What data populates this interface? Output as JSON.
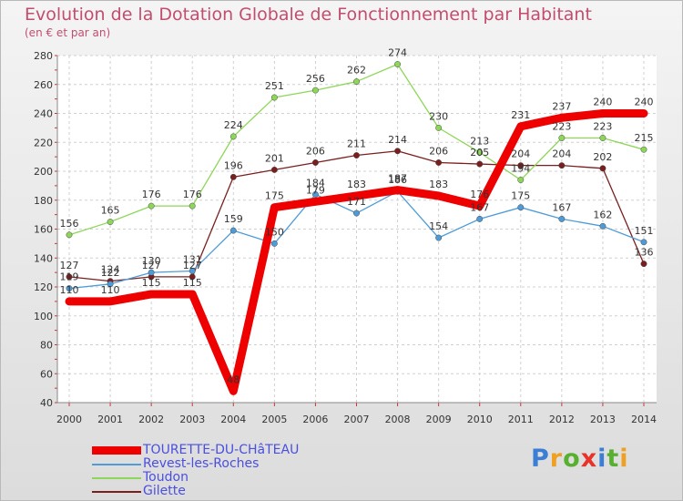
{
  "title": "Evolution de la Dotation Globale de Fonctionnement par Habitant",
  "subtitle": "(en € et par an)",
  "logo": {
    "letters": [
      "P",
      "r",
      "o",
      "x",
      "i",
      "t",
      "i"
    ],
    "colors": [
      "#3a7fd5",
      "#f0a020",
      "#58b030",
      "#e8322a",
      "#3a7fd5",
      "#58b030",
      "#f0a020"
    ]
  },
  "chart_data": {
    "type": "line",
    "categories": [
      "2000",
      "2001",
      "2002",
      "2003",
      "2004",
      "2005",
      "2006",
      "2007",
      "2008",
      "2009",
      "2010",
      "2011",
      "2012",
      "2013",
      "2014"
    ],
    "ylim": [
      40,
      280
    ],
    "yticks": [
      "40",
      "60",
      "80",
      "100",
      "120",
      "140",
      "160",
      "180",
      "200",
      "220",
      "240",
      "260",
      "280"
    ],
    "grid": true,
    "series": [
      {
        "name": "Gilette",
        "color": "#7a1f1f",
        "values": [
          127,
          124,
          127,
          127,
          196,
          201,
          206,
          211,
          214,
          206,
          205,
          204,
          204,
          202,
          136
        ]
      },
      {
        "name": "Toudon",
        "color": "#8ed65a",
        "values": [
          156,
          165,
          176,
          176,
          224,
          251,
          256,
          262,
          274,
          230,
          213,
          194,
          223,
          223,
          215
        ]
      },
      {
        "name": "Revest-les-Roches",
        "color": "#4f9bd8",
        "values": [
          119,
          122,
          130,
          131,
          159,
          150,
          184,
          171,
          186,
          154,
          167,
          175,
          167,
          162,
          151
        ]
      },
      {
        "name": "TOURETTE-DU-CHâTEAU",
        "color": "#ee0000",
        "values": [
          110,
          110,
          115,
          115,
          48,
          175,
          179,
          183,
          187,
          183,
          176,
          231,
          237,
          240,
          240
        ]
      }
    ]
  }
}
